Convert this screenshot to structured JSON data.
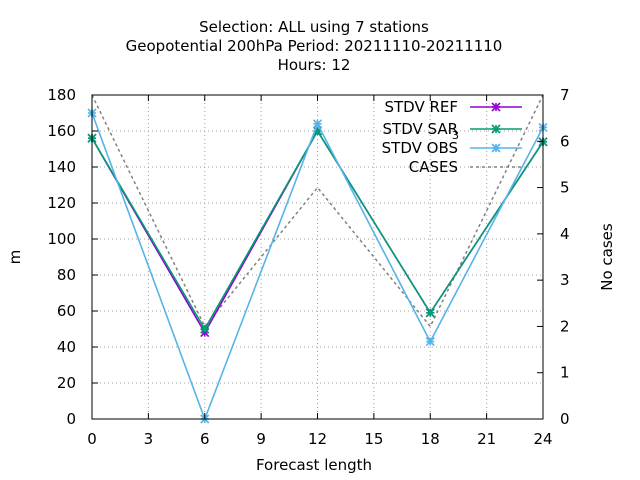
{
  "chart_data": {
    "type": "line",
    "title_lines": [
      "Selection: ALL using     7 stations",
      "Geopotential 200hPa   Period: 20211110-20211110",
      "Hours:  12"
    ],
    "xlabel": "Forecast length",
    "ylabel": "m",
    "y2label": "No cases",
    "x": [
      0,
      6,
      12,
      18,
      24
    ],
    "xticks": [
      0,
      3,
      6,
      9,
      12,
      15,
      18,
      21,
      24
    ],
    "yticks": [
      0,
      20,
      40,
      60,
      80,
      100,
      120,
      140,
      160,
      180
    ],
    "y2ticks": [
      0,
      1,
      2,
      3,
      4,
      5,
      6,
      7
    ],
    "xlim": [
      0,
      24
    ],
    "ylim": [
      0,
      180
    ],
    "y2lim": [
      0,
      7
    ],
    "grid": true,
    "legend_position": "top-right",
    "series": [
      {
        "name": "STDV REF",
        "color": "#9400d3",
        "marker": "x-star",
        "axis": "y",
        "dashed": false,
        "values": [
          156,
          48,
          160,
          59,
          154
        ]
      },
      {
        "name": "STDV SAR",
        "subscript": "3",
        "color": "#009e73",
        "marker": "x-star",
        "axis": "y",
        "dashed": false,
        "values": [
          156,
          50,
          160,
          59,
          154
        ]
      },
      {
        "name": "STDV OBS",
        "color": "#56b4e9",
        "marker": "x-star",
        "axis": "y",
        "dashed": false,
        "values": [
          170,
          0,
          164,
          43,
          162
        ]
      },
      {
        "name": "CASES",
        "color": "#808080",
        "marker": "none",
        "axis": "y2",
        "dashed": true,
        "values": [
          7,
          2,
          5,
          2,
          7
        ]
      }
    ]
  }
}
